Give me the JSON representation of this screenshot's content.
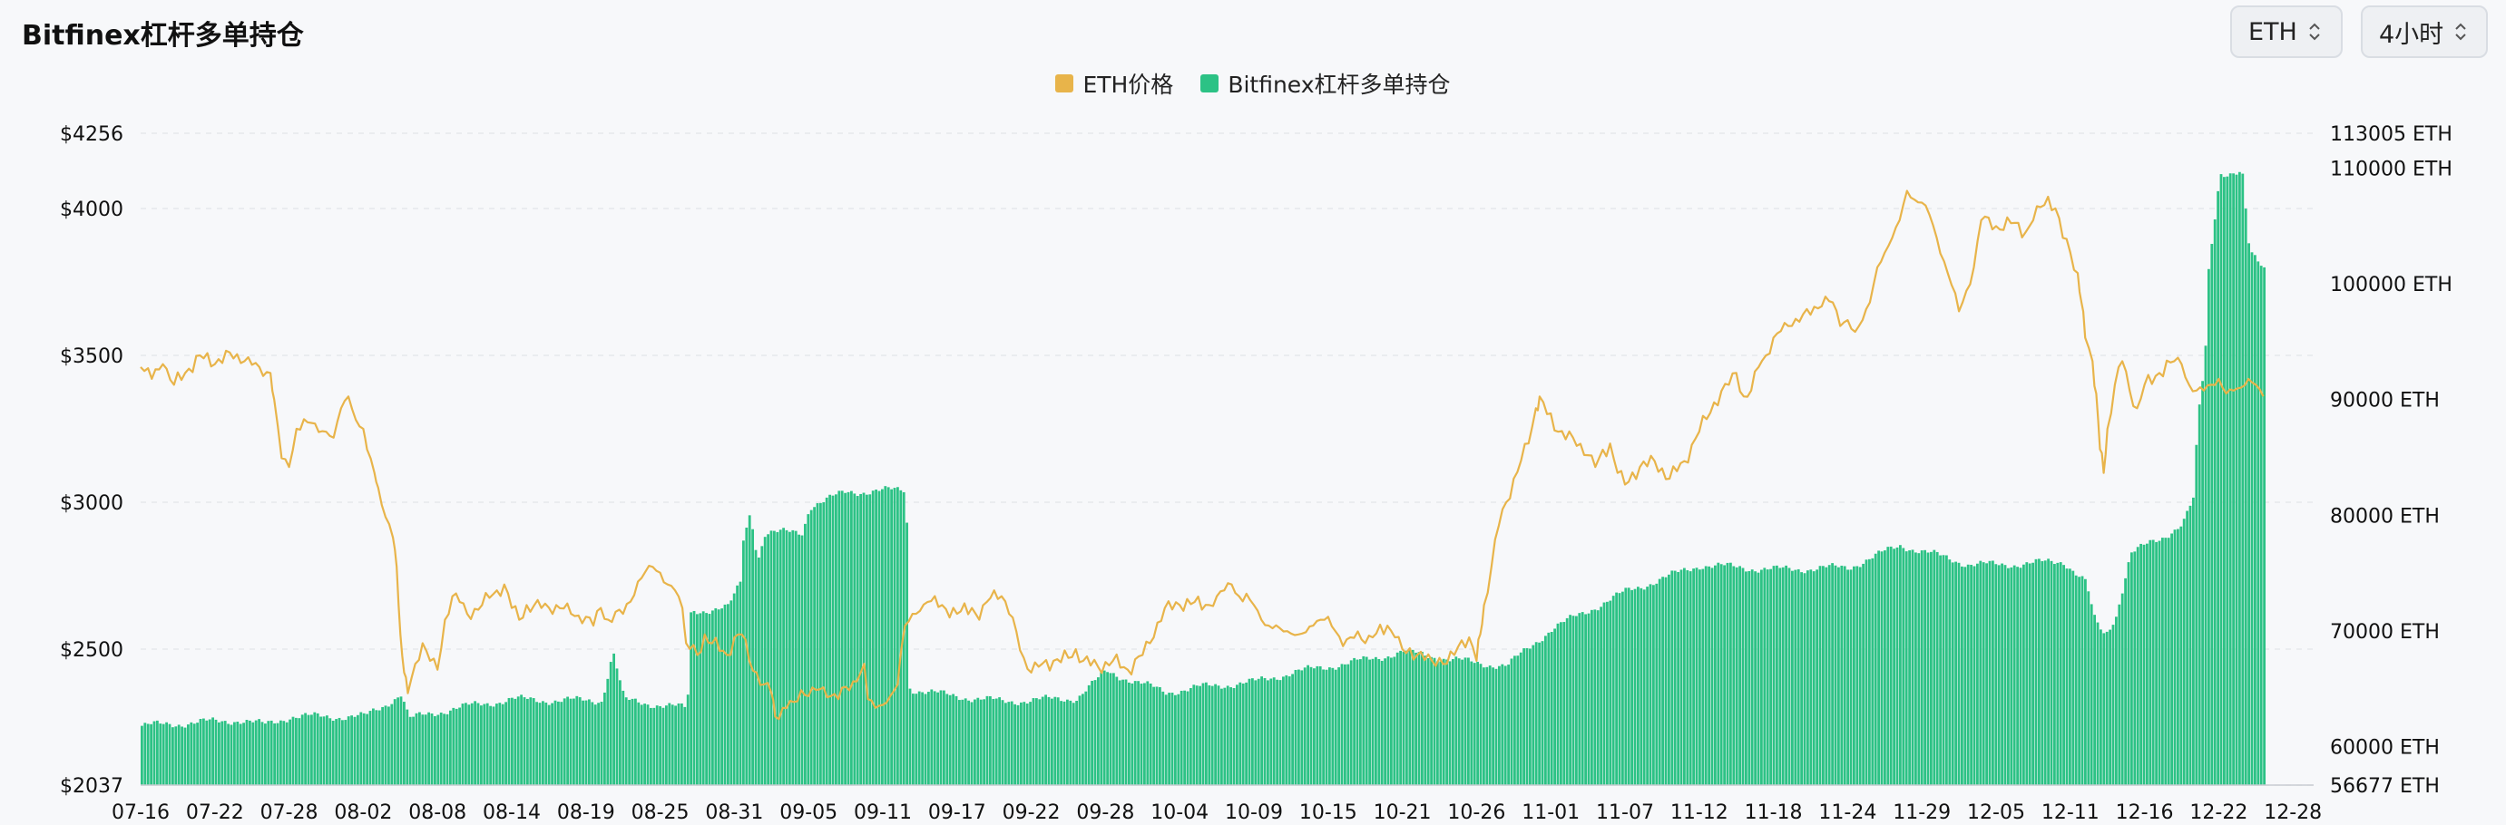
{
  "header": {
    "title": "Bitfinex杠杆多单持仓"
  },
  "controls": {
    "asset_select": "ETH",
    "interval_select": "4小时"
  },
  "colors": {
    "price_line": "#e8b44a",
    "bars": "#2cc285",
    "grid": "#e6e8eb"
  },
  "chart_data": {
    "type": "bar",
    "title": "Bitfinex杠杆多单持仓",
    "legend_position": "top-center",
    "grid": true,
    "x_ticks": [
      "07-16",
      "07-22",
      "07-28",
      "08-02",
      "08-08",
      "08-14",
      "08-19",
      "08-25",
      "08-31",
      "09-05",
      "09-11",
      "09-17",
      "09-22",
      "09-28",
      "10-04",
      "10-09",
      "10-15",
      "10-21",
      "10-26",
      "11-01",
      "11-07",
      "11-12",
      "11-18",
      "11-24",
      "11-29",
      "12-05",
      "12-11",
      "12-16",
      "12-22",
      "12-28"
    ],
    "y_left": {
      "range": [
        2037,
        4256
      ],
      "ticks": [
        2037,
        2500,
        3000,
        3500,
        4000,
        4256
      ],
      "tick_labels": [
        "$2037",
        "$2500",
        "$3000",
        "$3500",
        "$4000",
        "$4256"
      ]
    },
    "y_right": {
      "range": [
        56677,
        113005
      ],
      "ticks": [
        56677,
        60000,
        70000,
        80000,
        90000,
        100000,
        110000,
        113005
      ],
      "tick_labels": [
        "56677 ETH",
        "60000 ETH",
        "70000 ETH",
        "80000 ETH",
        "90000 ETH",
        "100000 ETH",
        "110000 ETH",
        "113005 ETH"
      ]
    },
    "series": [
      {
        "name": "ETH价格",
        "type": "line",
        "axis": "left",
        "color": "#e8b44a",
        "points": [
          [
            0,
            3460
          ],
          [
            0.15,
            3420
          ],
          [
            0.3,
            3470
          ],
          [
            0.45,
            3400
          ],
          [
            0.6,
            3440
          ],
          [
            0.8,
            3500
          ],
          [
            1.0,
            3470
          ],
          [
            1.2,
            3510
          ],
          [
            1.4,
            3480
          ],
          [
            1.6,
            3460
          ],
          [
            1.75,
            3440
          ],
          [
            1.8,
            3350
          ],
          [
            1.9,
            3150
          ],
          [
            2.0,
            3120
          ],
          [
            2.1,
            3250
          ],
          [
            2.3,
            3270
          ],
          [
            2.5,
            3240
          ],
          [
            2.6,
            3220
          ],
          [
            2.7,
            3320
          ],
          [
            2.8,
            3360
          ],
          [
            2.9,
            3280
          ],
          [
            3.0,
            3250
          ],
          [
            3.05,
            3180
          ],
          [
            3.15,
            3100
          ],
          [
            3.2,
            3050
          ],
          [
            3.3,
            2950
          ],
          [
            3.4,
            2880
          ],
          [
            3.45,
            2780
          ],
          [
            3.5,
            2550
          ],
          [
            3.55,
            2420
          ],
          [
            3.6,
            2350
          ],
          [
            3.7,
            2450
          ],
          [
            3.8,
            2520
          ],
          [
            3.9,
            2460
          ],
          [
            4.0,
            2430
          ],
          [
            4.1,
            2600
          ],
          [
            4.2,
            2680
          ],
          [
            4.3,
            2660
          ],
          [
            4.4,
            2620
          ],
          [
            4.6,
            2650
          ],
          [
            4.8,
            2700
          ],
          [
            4.9,
            2720
          ],
          [
            5.0,
            2640
          ],
          [
            5.1,
            2600
          ],
          [
            5.2,
            2650
          ],
          [
            5.4,
            2640
          ],
          [
            5.6,
            2650
          ],
          [
            5.8,
            2620
          ],
          [
            6.0,
            2610
          ],
          [
            6.1,
            2580
          ],
          [
            6.2,
            2640
          ],
          [
            6.3,
            2600
          ],
          [
            6.5,
            2620
          ],
          [
            6.7,
            2730
          ],
          [
            6.9,
            2780
          ],
          [
            7.0,
            2760
          ],
          [
            7.1,
            2720
          ],
          [
            7.2,
            2700
          ],
          [
            7.3,
            2640
          ],
          [
            7.35,
            2520
          ],
          [
            7.5,
            2480
          ],
          [
            7.6,
            2550
          ],
          [
            7.7,
            2520
          ],
          [
            7.9,
            2480
          ],
          [
            8.0,
            2540
          ],
          [
            8.1,
            2550
          ],
          [
            8.2,
            2460
          ],
          [
            8.3,
            2420
          ],
          [
            8.4,
            2380
          ],
          [
            8.5,
            2350
          ],
          [
            8.55,
            2270
          ],
          [
            8.65,
            2300
          ],
          [
            8.8,
            2320
          ],
          [
            8.9,
            2360
          ],
          [
            9.0,
            2340
          ],
          [
            9.2,
            2370
          ],
          [
            9.4,
            2330
          ],
          [
            9.6,
            2390
          ],
          [
            9.75,
            2450
          ],
          [
            9.8,
            2330
          ],
          [
            9.9,
            2300
          ],
          [
            10.0,
            2310
          ],
          [
            10.1,
            2340
          ],
          [
            10.2,
            2380
          ],
          [
            10.25,
            2500
          ],
          [
            10.3,
            2580
          ],
          [
            10.4,
            2620
          ],
          [
            10.5,
            2630
          ],
          [
            10.6,
            2660
          ],
          [
            10.8,
            2650
          ],
          [
            11.0,
            2620
          ],
          [
            11.2,
            2640
          ],
          [
            11.3,
            2600
          ],
          [
            11.4,
            2660
          ],
          [
            11.5,
            2700
          ],
          [
            11.6,
            2680
          ],
          [
            11.7,
            2620
          ],
          [
            11.8,
            2560
          ],
          [
            11.9,
            2470
          ],
          [
            12.0,
            2420
          ],
          [
            12.1,
            2440
          ],
          [
            12.3,
            2460
          ],
          [
            12.5,
            2470
          ],
          [
            12.6,
            2500
          ],
          [
            12.7,
            2460
          ],
          [
            12.9,
            2440
          ],
          [
            13.1,
            2460
          ],
          [
            13.3,
            2430
          ],
          [
            13.5,
            2480
          ],
          [
            13.6,
            2520
          ],
          [
            13.7,
            2590
          ],
          [
            13.8,
            2640
          ],
          [
            14.0,
            2650
          ],
          [
            14.2,
            2660
          ],
          [
            14.4,
            2650
          ],
          [
            14.5,
            2680
          ],
          [
            14.6,
            2700
          ],
          [
            14.7,
            2720
          ],
          [
            14.8,
            2680
          ],
          [
            15.0,
            2650
          ],
          [
            15.1,
            2600
          ],
          [
            15.2,
            2580
          ],
          [
            15.4,
            2560
          ],
          [
            15.6,
            2550
          ],
          [
            15.8,
            2580
          ],
          [
            15.9,
            2600
          ],
          [
            16.0,
            2610
          ],
          [
            16.1,
            2560
          ],
          [
            16.2,
            2510
          ],
          [
            16.3,
            2540
          ],
          [
            16.4,
            2560
          ],
          [
            16.5,
            2520
          ],
          [
            16.6,
            2540
          ],
          [
            16.8,
            2580
          ],
          [
            16.9,
            2540
          ],
          [
            17.0,
            2500
          ],
          [
            17.2,
            2480
          ],
          [
            17.4,
            2460
          ],
          [
            17.5,
            2470
          ],
          [
            17.6,
            2450
          ],
          [
            17.7,
            2480
          ],
          [
            17.8,
            2530
          ],
          [
            17.9,
            2540
          ],
          [
            18.0,
            2460
          ],
          [
            18.05,
            2550
          ],
          [
            18.1,
            2650
          ],
          [
            18.2,
            2780
          ],
          [
            18.3,
            2920
          ],
          [
            18.4,
            3000
          ],
          [
            18.5,
            3080
          ],
          [
            18.7,
            3200
          ],
          [
            18.8,
            3320
          ],
          [
            18.85,
            3360
          ],
          [
            18.95,
            3300
          ],
          [
            19.1,
            3240
          ],
          [
            19.3,
            3220
          ],
          [
            19.5,
            3160
          ],
          [
            19.6,
            3120
          ],
          [
            19.8,
            3200
          ],
          [
            19.9,
            3100
          ],
          [
            20.0,
            3060
          ],
          [
            20.2,
            3120
          ],
          [
            20.4,
            3140
          ],
          [
            20.6,
            3080
          ],
          [
            20.8,
            3140
          ],
          [
            21.0,
            3240
          ],
          [
            21.2,
            3340
          ],
          [
            21.4,
            3400
          ],
          [
            21.5,
            3440
          ],
          [
            21.6,
            3360
          ],
          [
            21.7,
            3380
          ],
          [
            21.8,
            3460
          ],
          [
            21.9,
            3500
          ],
          [
            22.0,
            3560
          ],
          [
            22.2,
            3600
          ],
          [
            22.4,
            3640
          ],
          [
            22.6,
            3660
          ],
          [
            22.7,
            3700
          ],
          [
            22.8,
            3680
          ],
          [
            22.9,
            3600
          ],
          [
            23.0,
            3620
          ],
          [
            23.1,
            3580
          ],
          [
            23.2,
            3620
          ],
          [
            23.3,
            3680
          ],
          [
            23.4,
            3800
          ],
          [
            23.5,
            3850
          ],
          [
            23.6,
            3900
          ],
          [
            23.7,
            3960
          ],
          [
            23.8,
            4060
          ],
          [
            23.9,
            4030
          ],
          [
            24.0,
            4020
          ],
          [
            24.1,
            3980
          ],
          [
            24.2,
            3900
          ],
          [
            24.3,
            3820
          ],
          [
            24.4,
            3740
          ],
          [
            24.5,
            3650
          ],
          [
            24.6,
            3720
          ],
          [
            24.7,
            3800
          ],
          [
            24.8,
            3960
          ],
          [
            25.0,
            3940
          ],
          [
            25.2,
            3950
          ],
          [
            25.4,
            3920
          ],
          [
            25.5,
            3960
          ],
          [
            25.7,
            4040
          ],
          [
            25.8,
            4000
          ],
          [
            25.9,
            3900
          ],
          [
            26.0,
            3850
          ],
          [
            26.1,
            3780
          ],
          [
            26.15,
            3680
          ],
          [
            26.2,
            3560
          ],
          [
            26.3,
            3480
          ],
          [
            26.35,
            3370
          ],
          [
            26.4,
            3180
          ],
          [
            26.45,
            3100
          ],
          [
            26.5,
            3250
          ],
          [
            26.6,
            3400
          ],
          [
            26.7,
            3480
          ],
          [
            26.8,
            3380
          ],
          [
            26.9,
            3320
          ],
          [
            27.0,
            3400
          ],
          [
            27.2,
            3440
          ],
          [
            27.4,
            3480
          ],
          [
            27.5,
            3470
          ],
          [
            27.6,
            3400
          ],
          [
            27.7,
            3380
          ],
          [
            27.8,
            3380
          ],
          [
            27.9,
            3400
          ],
          [
            28.0,
            3420
          ],
          [
            28.1,
            3370
          ],
          [
            28.2,
            3380
          ],
          [
            28.3,
            3390
          ],
          [
            28.4,
            3420
          ],
          [
            28.5,
            3400
          ],
          [
            28.6,
            3360
          ]
        ]
      },
      {
        "name": "Bitfinex杠杆多单持仓",
        "type": "bar",
        "axis": "right",
        "color": "#2cc285",
        "anchors": [
          [
            0,
            61800
          ],
          [
            1.3,
            62300
          ],
          [
            1.65,
            61900
          ],
          [
            1.8,
            62200
          ],
          [
            2.0,
            62600
          ],
          [
            3.0,
            62600
          ],
          [
            3.25,
            63500
          ],
          [
            3.5,
            64600
          ],
          [
            3.6,
            62400
          ],
          [
            3.8,
            62700
          ],
          [
            4.2,
            63300
          ],
          [
            5.0,
            64100
          ],
          [
            5.5,
            64000
          ],
          [
            6.2,
            64000
          ],
          [
            6.35,
            68200
          ],
          [
            6.5,
            64000
          ],
          [
            7.0,
            63600
          ],
          [
            7.35,
            63300
          ],
          [
            7.4,
            71700
          ],
          [
            7.9,
            72000
          ],
          [
            8.1,
            74600
          ],
          [
            8.1,
            77800
          ],
          [
            8.2,
            80300
          ],
          [
            8.3,
            76200
          ],
          [
            8.4,
            78500
          ],
          [
            8.9,
            78500
          ],
          [
            9.0,
            80800
          ],
          [
            9.5,
            82000
          ],
          [
            10.3,
            82200
          ],
          [
            10.35,
            65000
          ],
          [
            10.8,
            64500
          ],
          [
            11.6,
            63900
          ],
          [
            12.6,
            64200
          ],
          [
            13.0,
            66500
          ],
          [
            13.8,
            64700
          ],
          [
            14.2,
            65100
          ],
          [
            15.0,
            65600
          ],
          [
            15.5,
            66400
          ],
          [
            16.5,
            67500
          ],
          [
            17.0,
            68200
          ],
          [
            18.0,
            67200
          ],
          [
            18.4,
            67000
          ],
          [
            19.0,
            70200
          ],
          [
            19.5,
            71800
          ],
          [
            20.0,
            73400
          ],
          [
            21.0,
            75700
          ],
          [
            22.0,
            75300
          ],
          [
            23.0,
            75500
          ],
          [
            23.7,
            77400
          ],
          [
            24.6,
            75800
          ],
          [
            25.0,
            75700
          ],
          [
            25.9,
            76000
          ],
          [
            26.2,
            74200
          ],
          [
            26.3,
            71100
          ],
          [
            26.45,
            69500
          ],
          [
            26.6,
            71300
          ],
          [
            26.8,
            76800
          ],
          [
            27.2,
            77900
          ],
          [
            27.5,
            79400
          ],
          [
            27.65,
            81500
          ],
          [
            27.7,
            88000
          ],
          [
            27.8,
            93400
          ],
          [
            27.85,
            101300
          ],
          [
            28.0,
            109600
          ],
          [
            28.3,
            109600
          ],
          [
            28.4,
            102600
          ],
          [
            28.6,
            101300
          ]
        ]
      }
    ]
  }
}
